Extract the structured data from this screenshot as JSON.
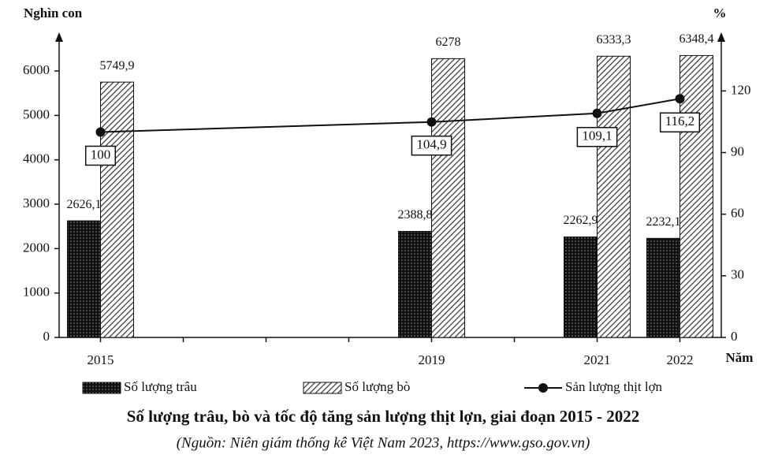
{
  "chart_data": {
    "type": "combo",
    "title": "Số lượng trâu, bò và tốc độ tăng sản lượng thịt lợn, giai đoạn 2015 - 2022",
    "subtitle": "(Nguồn: Niên giám thống kê Việt Nam 2023, https://www.gso.gov.vn)",
    "ylabel": "Nghìn con",
    "y2label": "%",
    "xlabel": "Năm",
    "x": [
      2015,
      2019,
      2021,
      2022
    ],
    "xlim": [
      2014.5,
      2022.5
    ],
    "xticks": [
      2015,
      2019,
      2021,
      2022
    ],
    "xminor_ticks": [
      2016,
      2017,
      2018,
      2020
    ],
    "ylim": [
      0,
      6800
    ],
    "yticks": [
      0,
      1000,
      2000,
      3000,
      4000,
      5000,
      6000
    ],
    "y2lim": [
      0,
      147
    ],
    "y2ticks": [
      0,
      30,
      60,
      90,
      120
    ],
    "series": [
      {
        "name": "Số lượng trâu",
        "type": "bar",
        "pattern": "dots",
        "color": "#111111",
        "values": [
          2626.1,
          2388.8,
          2262.9,
          2232.1
        ],
        "value_labels": [
          "2626,1",
          "2388,8",
          "2262,9",
          "2232,1"
        ]
      },
      {
        "name": "Số lượng bò",
        "type": "bar",
        "pattern": "hatch",
        "color": "#333333",
        "values": [
          5749.9,
          6278,
          6333.3,
          6348.4
        ],
        "value_labels": [
          "5749,9",
          "6278",
          "6333,3",
          "6348,4"
        ]
      },
      {
        "name": "Sản lượng thịt lợn",
        "type": "line",
        "axis": "y2",
        "color": "#111111",
        "values": [
          100,
          104.9,
          109.1,
          116.2
        ],
        "value_labels": [
          "100",
          "104,9",
          "109,1",
          "116,2"
        ]
      }
    ]
  }
}
